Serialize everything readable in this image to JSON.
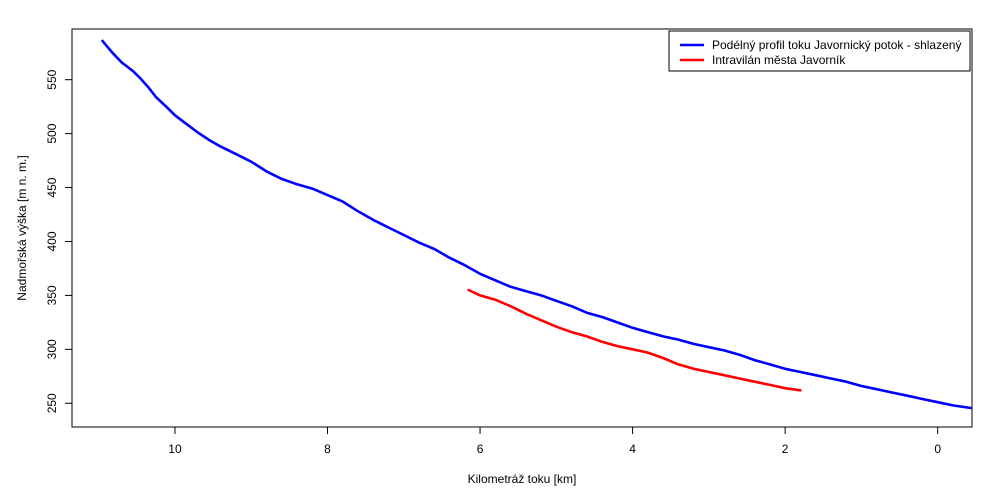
{
  "chart_data": {
    "type": "line",
    "xlabel": "Kilometráž toku [km]",
    "ylabel": "Nadmořská výška [m n. m.]",
    "xlim": [
      11.35,
      -0.45
    ],
    "ylim": [
      228,
      597
    ],
    "x_ticks": [
      10,
      8,
      6,
      4,
      2,
      0
    ],
    "y_ticks": [
      250,
      300,
      350,
      400,
      450,
      500,
      550
    ],
    "legend_position": "top-right",
    "series": [
      {
        "name": "Podélný profil toku Javornický potok - shlazený",
        "color": "#0000ff",
        "points": [
          [
            10.95,
            586
          ],
          [
            10.82,
            575
          ],
          [
            10.7,
            566
          ],
          [
            10.55,
            558
          ],
          [
            10.45,
            551
          ],
          [
            10.35,
            543
          ],
          [
            10.25,
            534
          ],
          [
            10.1,
            524
          ],
          [
            10.0,
            517
          ],
          [
            9.85,
            509
          ],
          [
            9.7,
            501
          ],
          [
            9.55,
            494
          ],
          [
            9.4,
            488
          ],
          [
            9.2,
            481
          ],
          [
            9.0,
            474
          ],
          [
            8.8,
            465
          ],
          [
            8.6,
            458
          ],
          [
            8.4,
            453
          ],
          [
            8.2,
            449
          ],
          [
            8.0,
            443
          ],
          [
            7.8,
            437
          ],
          [
            7.6,
            428
          ],
          [
            7.4,
            420
          ],
          [
            7.2,
            413
          ],
          [
            7.0,
            406
          ],
          [
            6.8,
            399
          ],
          [
            6.6,
            393
          ],
          [
            6.4,
            385
          ],
          [
            6.2,
            378
          ],
          [
            6.0,
            370
          ],
          [
            5.8,
            364
          ],
          [
            5.6,
            358
          ],
          [
            5.4,
            354
          ],
          [
            5.2,
            350
          ],
          [
            5.0,
            345
          ],
          [
            4.8,
            340
          ],
          [
            4.6,
            334
          ],
          [
            4.4,
            330
          ],
          [
            4.2,
            325
          ],
          [
            4.0,
            320
          ],
          [
            3.8,
            316
          ],
          [
            3.6,
            312
          ],
          [
            3.4,
            309
          ],
          [
            3.2,
            305
          ],
          [
            3.0,
            302
          ],
          [
            2.8,
            299
          ],
          [
            2.6,
            295
          ],
          [
            2.4,
            290
          ],
          [
            2.2,
            286
          ],
          [
            2.0,
            282
          ],
          [
            1.8,
            279
          ],
          [
            1.6,
            276
          ],
          [
            1.4,
            273
          ],
          [
            1.2,
            270
          ],
          [
            1.0,
            266
          ],
          [
            0.8,
            263
          ],
          [
            0.6,
            260
          ],
          [
            0.4,
            257
          ],
          [
            0.2,
            254
          ],
          [
            0.0,
            251
          ],
          [
            -0.2,
            248
          ],
          [
            -0.4,
            246
          ],
          [
            -0.6,
            244
          ],
          [
            -0.8,
            243
          ],
          [
            -1.0,
            241
          ]
        ]
      },
      {
        "name": "Intravilán města Javorník",
        "color": "#ff0000",
        "points": [
          [
            6.15,
            355
          ],
          [
            6.0,
            350
          ],
          [
            5.8,
            346
          ],
          [
            5.6,
            340
          ],
          [
            5.4,
            333
          ],
          [
            5.2,
            327
          ],
          [
            5.0,
            321
          ],
          [
            4.8,
            316
          ],
          [
            4.6,
            312
          ],
          [
            4.4,
            307
          ],
          [
            4.2,
            303
          ],
          [
            4.0,
            300
          ],
          [
            3.8,
            297
          ],
          [
            3.6,
            292
          ],
          [
            3.4,
            286
          ],
          [
            3.2,
            282
          ],
          [
            3.0,
            279
          ],
          [
            2.8,
            276
          ],
          [
            2.6,
            273
          ],
          [
            2.4,
            270
          ],
          [
            2.2,
            267
          ],
          [
            2.0,
            264
          ],
          [
            1.8,
            262
          ]
        ]
      }
    ]
  }
}
